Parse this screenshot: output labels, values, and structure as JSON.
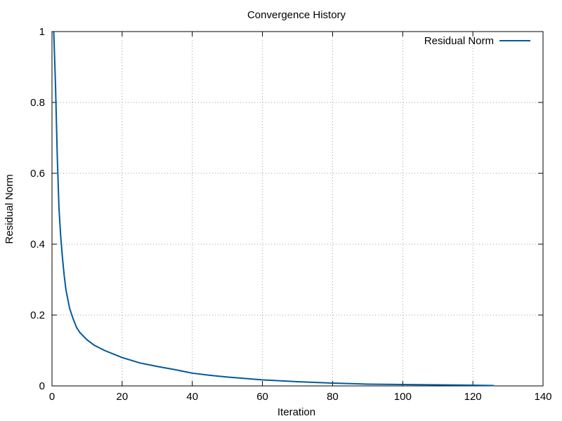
{
  "chart_data": {
    "type": "line",
    "title": "Convergence History",
    "xlabel": "Iteration",
    "ylabel": "Residual Norm",
    "xlim": [
      0,
      140
    ],
    "ylim": [
      0,
      1
    ],
    "xticks": [
      0,
      20,
      40,
      60,
      80,
      100,
      120,
      140
    ],
    "xtick_labels": [
      "0",
      "20",
      "40",
      "60",
      "80",
      "100",
      "120",
      "140"
    ],
    "yticks": [
      0,
      0.2,
      0.4,
      0.6,
      0.8,
      1
    ],
    "ytick_labels": [
      "0",
      "0.2",
      "0.4",
      "0.6",
      "0.8",
      "1"
    ],
    "grid": true,
    "legend_position": "top-right",
    "series": [
      {
        "name": "Residual Norm",
        "color": "#005a9c",
        "x": [
          0.5,
          1,
          1.5,
          2,
          2.5,
          3,
          3.5,
          4,
          5,
          6,
          7,
          8,
          10,
          12,
          15,
          18,
          20,
          25,
          30,
          35,
          40,
          45,
          50,
          60,
          70,
          80,
          90,
          100,
          110,
          120,
          126
        ],
        "y": [
          1.0,
          0.85,
          0.65,
          0.5,
          0.42,
          0.36,
          0.31,
          0.27,
          0.22,
          0.19,
          0.165,
          0.15,
          0.13,
          0.115,
          0.1,
          0.088,
          0.08,
          0.065,
          0.055,
          0.046,
          0.036,
          0.03,
          0.025,
          0.017,
          0.012,
          0.008,
          0.005,
          0.004,
          0.003,
          0.002,
          0.001
        ]
      }
    ]
  }
}
